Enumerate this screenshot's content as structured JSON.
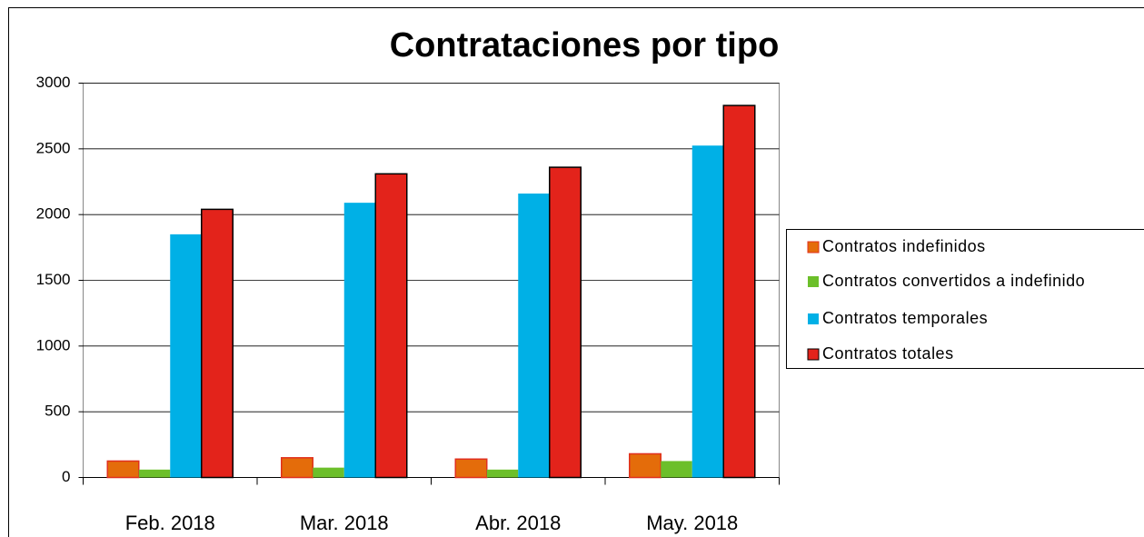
{
  "chart_data": {
    "type": "bar",
    "title": "Contrataciones por tipo",
    "categories": [
      "Feb. 2018",
      "Mar. 2018",
      "Abr. 2018",
      "May. 2018"
    ],
    "series": [
      {
        "name": "Contratos indefinidos",
        "color": "#e46c0a",
        "values": [
          125,
          150,
          140,
          180
        ]
      },
      {
        "name": "Contratos convertidos a indefinido",
        "color": "#6cbf2a",
        "values": [
          60,
          75,
          60,
          125
        ]
      },
      {
        "name": "Contratos temporales",
        "color": "#00b0e6",
        "values": [
          1850,
          2090,
          2160,
          2525
        ]
      },
      {
        "name": "Contratos totales",
        "color": "#e3231b",
        "values": [
          2040,
          2310,
          2360,
          2830
        ]
      }
    ],
    "ylim": [
      0,
      3000
    ],
    "yticks": [
      0,
      500,
      1000,
      1500,
      2000,
      2500,
      3000
    ],
    "grid": true,
    "legend": "right"
  }
}
